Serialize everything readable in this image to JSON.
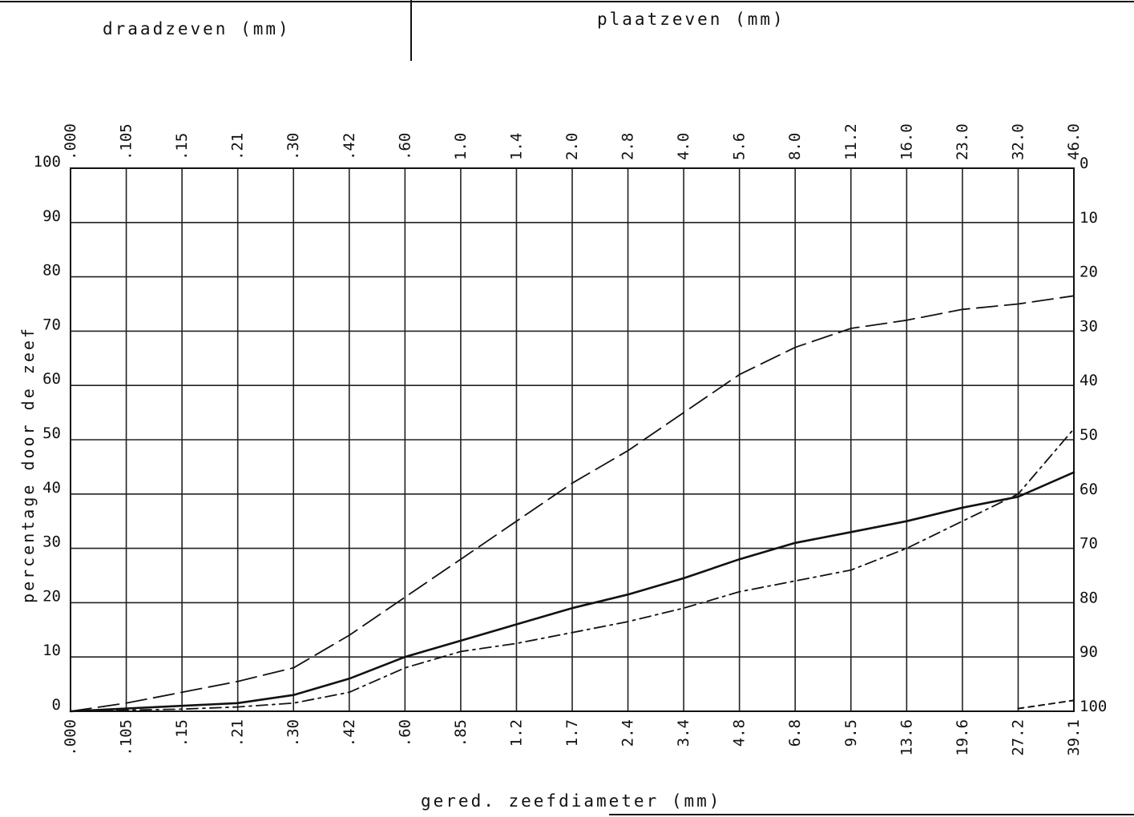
{
  "header": {
    "left_title": "draadzeven (mm)",
    "right_title": "plaatzeven (mm)"
  },
  "chart_data": {
    "type": "line",
    "title": "",
    "xlabel": "gered. zeefdiameter (mm)",
    "ylabel": "percentage door de zeef",
    "x_bottom_ticks": [
      ".000",
      ".105",
      ".15",
      ".21",
      ".30",
      ".42",
      ".60",
      ".85",
      "1.2",
      "1.7",
      "2.4",
      "3.4",
      "4.8",
      "6.8",
      "9.5",
      "13.6",
      "19.6",
      "27.2",
      "39.1"
    ],
    "x_top_ticks": [
      ".000",
      ".105",
      ".15",
      ".21",
      ".30",
      ".42",
      ".60",
      "1.0",
      "1.4",
      "2.0",
      "2.8",
      "4.0",
      "5.6",
      "8.0",
      "11.2",
      "16.0",
      "23.0",
      "32.0",
      "46.0"
    ],
    "y_left_ticks": [
      "0",
      "10",
      "20",
      "30",
      "40",
      "50",
      "60",
      "70",
      "80",
      "90",
      "100"
    ],
    "y_right_ticks": [
      "0",
      "10",
      "20",
      "30",
      "40",
      "50",
      "60",
      "70",
      "80",
      "90",
      "100"
    ],
    "ylim": [
      0,
      100
    ],
    "grid": true,
    "series": [
      {
        "style": "long-dash",
        "values": [
          0,
          1.5,
          3.5,
          5.5,
          8,
          14,
          21,
          28,
          35,
          42,
          48,
          55,
          62,
          67,
          70.5,
          72,
          74,
          75,
          76.5
        ]
      },
      {
        "style": "solid",
        "values": [
          0,
          0.5,
          1,
          1.5,
          3,
          6,
          10,
          13,
          16,
          19,
          21.5,
          24.5,
          28,
          31,
          33,
          35,
          37.5,
          39.5,
          44
        ]
      },
      {
        "style": "dash-dot",
        "values": [
          0,
          0.2,
          0.4,
          0.8,
          1.5,
          3.5,
          8,
          11,
          12.5,
          14.5,
          16.5,
          19,
          22,
          24,
          26,
          30,
          35,
          40,
          52
        ]
      },
      {
        "style": "short-dash",
        "values": [
          null,
          null,
          null,
          null,
          null,
          null,
          null,
          null,
          null,
          null,
          null,
          null,
          null,
          null,
          null,
          null,
          null,
          0.5,
          2
        ]
      }
    ]
  }
}
